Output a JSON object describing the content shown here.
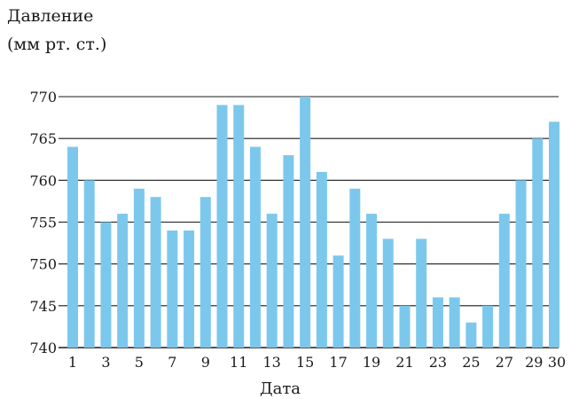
{
  "chart_data": {
    "type": "bar",
    "title": "",
    "ylabel_lines": [
      "Давление",
      "(мм рт. ст.)"
    ],
    "xlabel": "Дата",
    "ylim": [
      740,
      770
    ],
    "y_ticks": [
      740,
      745,
      750,
      755,
      760,
      765,
      770
    ],
    "grid": true,
    "bar_color": "#7cc8ec",
    "categories": [
      1,
      2,
      3,
      4,
      5,
      6,
      7,
      8,
      9,
      10,
      11,
      12,
      13,
      14,
      15,
      16,
      17,
      18,
      19,
      20,
      21,
      22,
      23,
      24,
      25,
      26,
      27,
      28,
      29,
      30
    ],
    "x_tick_labels": [
      "1",
      "3",
      "5",
      "7",
      "9",
      "11",
      "13",
      "15",
      "17",
      "19",
      "21",
      "23",
      "25",
      "27",
      "29",
      "30"
    ],
    "x_tick_positions": [
      1,
      3,
      5,
      7,
      9,
      11,
      13,
      15,
      17,
      19,
      21,
      23,
      25,
      27,
      29,
      30
    ],
    "values": [
      764,
      760,
      755,
      756,
      759,
      758,
      754,
      754,
      758,
      769,
      769,
      764,
      756,
      763,
      770,
      761,
      751,
      759,
      756,
      753,
      745,
      753,
      746,
      746,
      743,
      745,
      756,
      760,
      765,
      767
    ]
  }
}
